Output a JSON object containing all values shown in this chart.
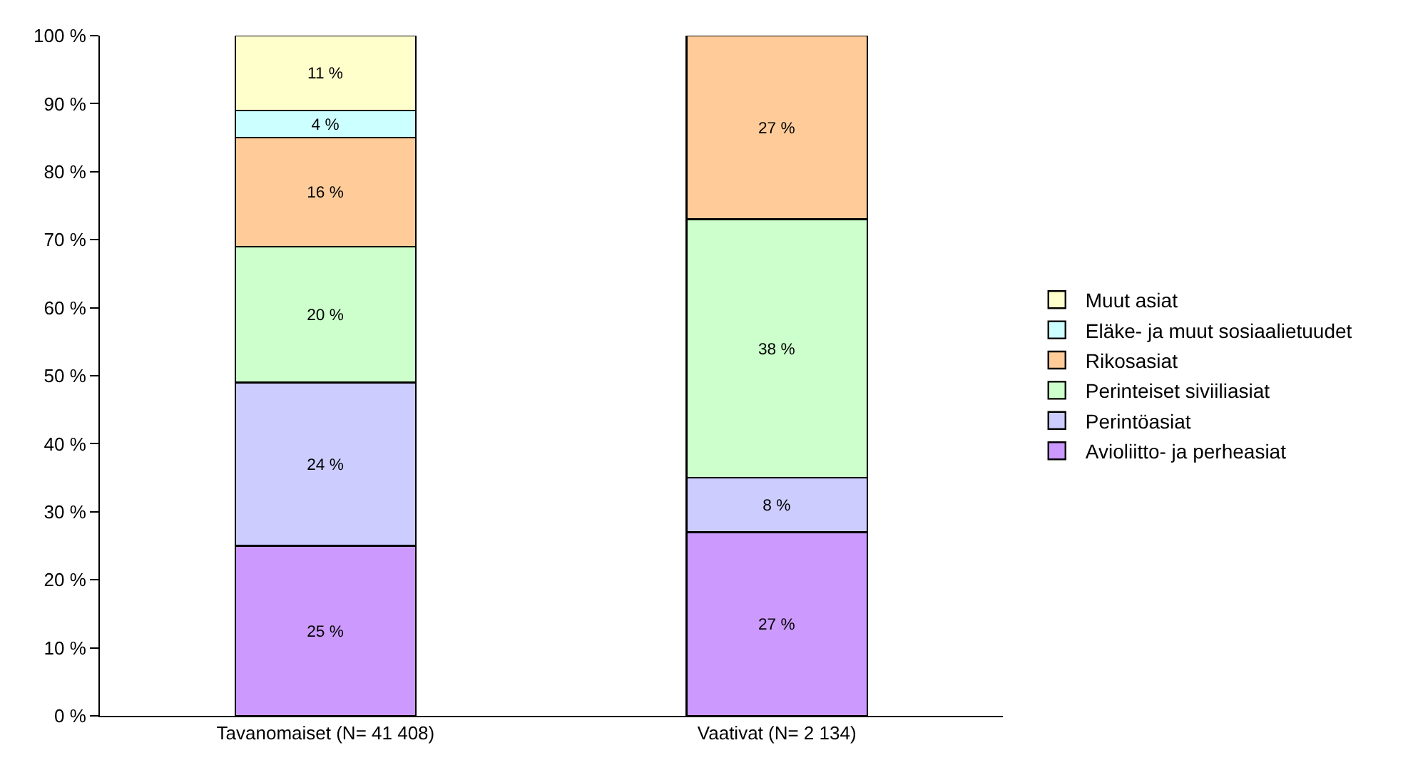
{
  "chart_data": {
    "type": "bar",
    "stacked": true,
    "categories": [
      "Tavanomaiset (N= 41 408)",
      "Vaativat (N= 2 134)"
    ],
    "series": [
      {
        "name": "Avioliitto- ja perheasiat",
        "color": "#cc99ff",
        "values": [
          25,
          27
        ],
        "value_labels": [
          "25 %",
          "27 %"
        ]
      },
      {
        "name": "Perintöasiat",
        "color": "#ccccff",
        "values": [
          24,
          8
        ],
        "value_labels": [
          "24 %",
          "8 %"
        ]
      },
      {
        "name": "Perinteiset siviiliasiat",
        "color": "#ccffcc",
        "values": [
          20,
          38
        ],
        "value_labels": [
          "20 %",
          "38 %"
        ]
      },
      {
        "name": "Rikosasiat",
        "color": "#ffcc99",
        "values": [
          16,
          27
        ],
        "value_labels": [
          "16 %",
          "27 %"
        ]
      },
      {
        "name": "Eläke- ja muut sosiaalietuudet",
        "color": "#ccffff",
        "values": [
          4,
          null
        ],
        "value_labels": [
          "4 %",
          null
        ]
      },
      {
        "name": "Muut asiat",
        "color": "#ffffcc",
        "values": [
          11,
          null
        ],
        "value_labels": [
          "11 %",
          null
        ]
      }
    ],
    "ylim": [
      0,
      100
    ],
    "yticks": [
      {
        "value": 0,
        "label": "0 %"
      },
      {
        "value": 10,
        "label": "10 %"
      },
      {
        "value": 20,
        "label": "20 %"
      },
      {
        "value": 30,
        "label": "30 %"
      },
      {
        "value": 40,
        "label": "40 %"
      },
      {
        "value": 50,
        "label": "50 %"
      },
      {
        "value": 60,
        "label": "60 %"
      },
      {
        "value": 70,
        "label": "70 %"
      },
      {
        "value": 80,
        "label": "80 %"
      },
      {
        "value": 90,
        "label": "90 %"
      },
      {
        "value": 100,
        "label": "100 %"
      }
    ],
    "grid": false,
    "legend": "right"
  }
}
